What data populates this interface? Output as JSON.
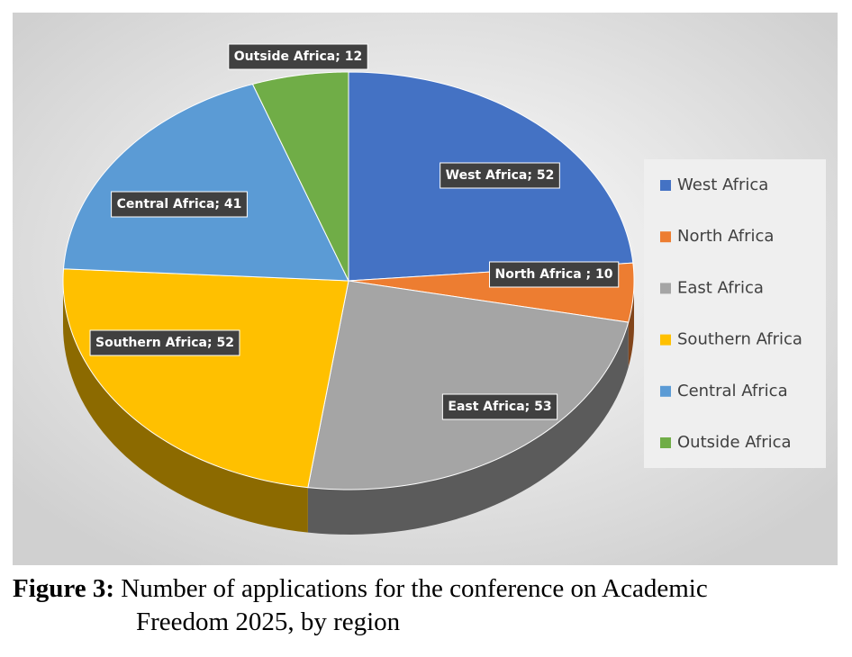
{
  "chart_data": {
    "type": "pie",
    "categories": [
      "West Africa",
      "North Africa",
      "East Africa",
      "Southern Africa",
      "Central Africa",
      "Outside Africa"
    ],
    "values": [
      52,
      10,
      53,
      52,
      41,
      12
    ],
    "value_labels": [
      "West Africa; 52",
      "North Africa ; 10",
      "East Africa; 53",
      "Southern Africa; 52",
      "Central Africa; 41",
      "Outside Africa; 12"
    ],
    "colors": [
      "#4472c4",
      "#ed7d31",
      "#a5a5a5",
      "#ffc000",
      "#5b9bd5",
      "#70ad47"
    ],
    "legend": "right"
  },
  "caption": {
    "label": "Figure 3:",
    "lines": [
      "Number of applications for the conference on Academic",
      "Freedom 2025, by region"
    ]
  }
}
